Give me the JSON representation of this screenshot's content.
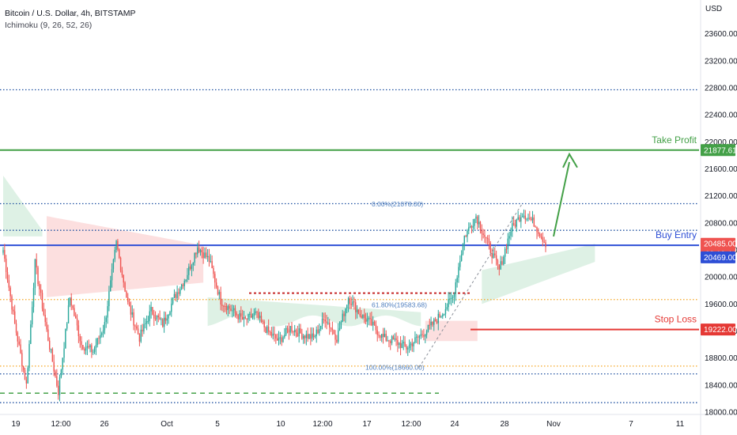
{
  "header": {
    "symbol_title": "Bitcoin / U.S. Dollar, 4h, BITSTAMP",
    "indicator": "Ichimoku (9, 26, 52, 26)",
    "currency": "USD"
  },
  "colors": {
    "up": "#26a69a",
    "down": "#ef5350",
    "take_profit": "#43a047",
    "buy_entry": "#2e4fd6",
    "stop_loss": "#e53935",
    "dotted_level": "#1e50a0",
    "fib": "#f5a623",
    "cloud_green": "#d8efe0",
    "cloud_red": "#fbd9d9"
  },
  "chart_data": {
    "type": "candlestick",
    "ylim": [
      18000,
      23900
    ],
    "y_ticks": [
      18000,
      18400,
      18800,
      19200,
      19600,
      20000,
      20400,
      20800,
      21200,
      21600,
      22000,
      22400,
      22800,
      23200,
      23600
    ],
    "x_tick_labels": [
      "19",
      "12:00",
      "26",
      "Oct",
      "5",
      "10",
      "12:00",
      "17",
      "12:00",
      "24",
      "28",
      "Nov",
      "7",
      "11"
    ],
    "price_tags": [
      {
        "label": "21877.61",
        "kind": "take_profit"
      },
      {
        "label": "20485.00",
        "sub": "03:19:44",
        "kind": "price"
      },
      {
        "label": "20469.00",
        "kind": "entry"
      },
      {
        "label": "19222.00",
        "kind": "stop_loss"
      }
    ],
    "annotations": {
      "take_profit": {
        "label": "Take Profit",
        "value": 21877.61
      },
      "buy_entry": {
        "label": "Buy Entry",
        "value": 20469
      },
      "stop_loss": {
        "label": "Stop Loss",
        "value": 19222
      }
    },
    "horizontal_levels": [
      22770,
      21877.61,
      21085,
      20690,
      20469,
      19665,
      18680,
      18565,
      18140
    ],
    "fib_labels": [
      {
        "text": "0.00%(21078.00)",
        "value": 21078
      },
      {
        "text": "61.80%(19583.68)",
        "value": 19583.68
      },
      {
        "text": "100.00%(18660.00)",
        "value": 18660
      }
    ],
    "anchors": [
      [
        0,
        20400
      ],
      [
        8,
        19300
      ],
      [
        16,
        18400
      ],
      [
        22,
        20200
      ],
      [
        30,
        19200
      ],
      [
        38,
        18300
      ],
      [
        46,
        19700
      ],
      [
        54,
        19000
      ],
      [
        62,
        18900
      ],
      [
        70,
        19300
      ],
      [
        78,
        20500
      ],
      [
        86,
        19600
      ],
      [
        94,
        19100
      ],
      [
        102,
        19500
      ],
      [
        110,
        19300
      ],
      [
        118,
        19700
      ],
      [
        126,
        20000
      ],
      [
        134,
        20450
      ],
      [
        142,
        20250
      ],
      [
        150,
        19650
      ],
      [
        158,
        19500
      ],
      [
        166,
        19350
      ],
      [
        174,
        19450
      ],
      [
        182,
        19200
      ],
      [
        190,
        19050
      ],
      [
        198,
        19250
      ],
      [
        206,
        19150
      ],
      [
        214,
        19100
      ],
      [
        222,
        19400
      ],
      [
        230,
        19100
      ],
      [
        238,
        19700
      ],
      [
        246,
        19450
      ],
      [
        254,
        19300
      ],
      [
        262,
        19100
      ],
      [
        270,
        19050
      ],
      [
        278,
        18950
      ],
      [
        286,
        19100
      ],
      [
        294,
        19250
      ],
      [
        302,
        19450
      ],
      [
        310,
        19700
      ],
      [
        318,
        20600
      ],
      [
        326,
        20900
      ],
      [
        334,
        20500
      ],
      [
        342,
        20100
      ],
      [
        350,
        20700
      ],
      [
        358,
        20950
      ],
      [
        366,
        20800
      ],
      [
        374,
        20500
      ]
    ]
  }
}
